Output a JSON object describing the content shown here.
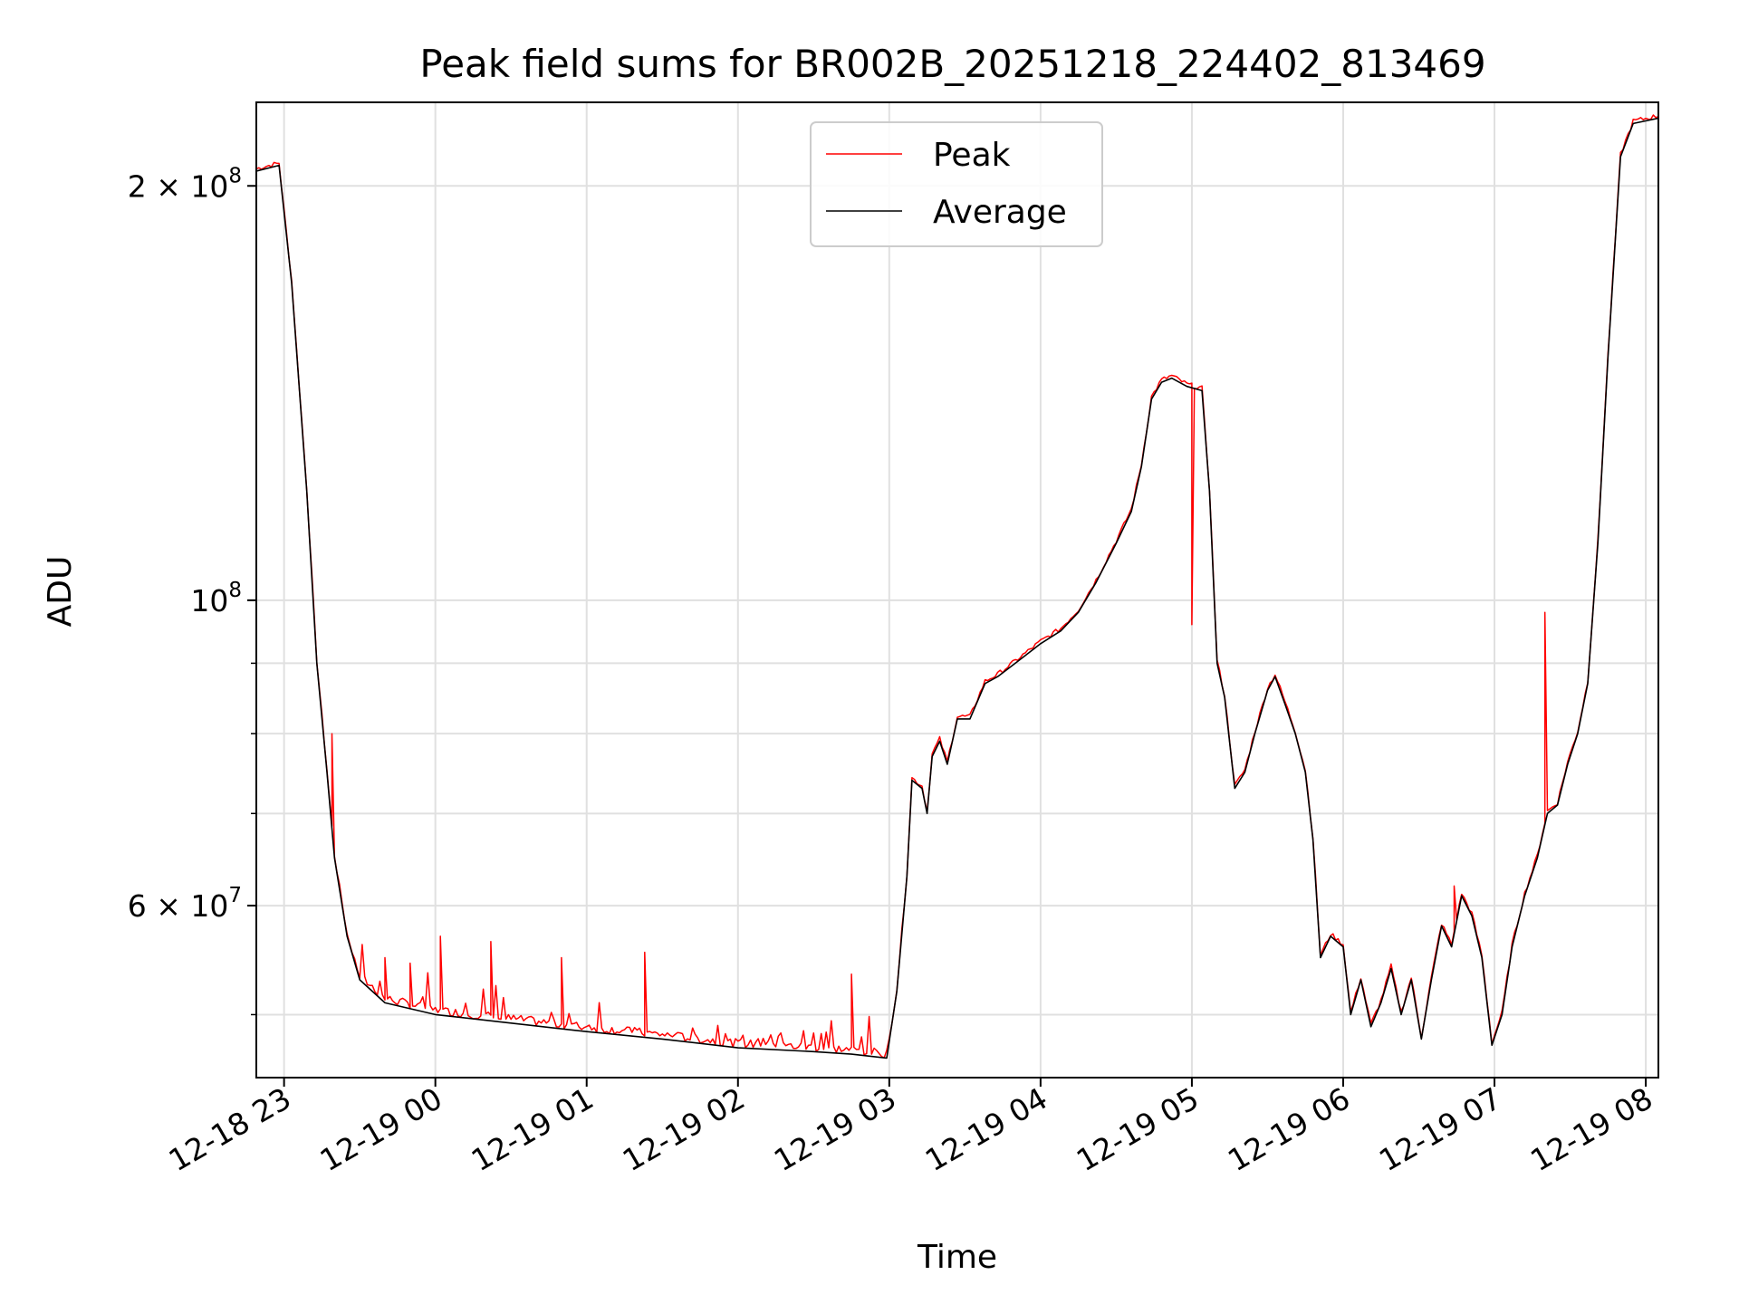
{
  "chart_data": {
    "type": "line",
    "title": "Peak field sums for BR002B_20251218_224402_813469",
    "xlabel": "Time",
    "ylabel": "ADU",
    "yscale": "log",
    "ylim": [
      45000000,
      230000000
    ],
    "xlim": [
      "2025-12-18 22:49",
      "2025-12-19 08:05"
    ],
    "grid": true,
    "legend_position": "upper center",
    "x_ticks": [
      {
        "t": "2025-12-18 23:00",
        "label": "12-18 23"
      },
      {
        "t": "2025-12-19 00:00",
        "label": "12-19 00"
      },
      {
        "t": "2025-12-19 01:00",
        "label": "12-19 01"
      },
      {
        "t": "2025-12-19 02:00",
        "label": "12-19 02"
      },
      {
        "t": "2025-12-19 03:00",
        "label": "12-19 03"
      },
      {
        "t": "2025-12-19 04:00",
        "label": "12-19 04"
      },
      {
        "t": "2025-12-19 05:00",
        "label": "12-19 05"
      },
      {
        "t": "2025-12-19 06:00",
        "label": "12-19 06"
      },
      {
        "t": "2025-12-19 07:00",
        "label": "12-19 07"
      },
      {
        "t": "2025-12-19 08:00",
        "label": "12-19 08"
      }
    ],
    "y_ticks_major": [
      {
        "value": 200000000,
        "base": "2 × 10",
        "exp": "8"
      },
      {
        "value": 100000000,
        "base": "10",
        "exp": "8"
      },
      {
        "value": 60000000,
        "base": "6 × 10",
        "exp": "7"
      }
    ],
    "y_ticks_minor": [
      50000000,
      70000000,
      80000000,
      90000000
    ],
    "series": [
      {
        "name": "Average",
        "color": "#000000",
        "points": [
          [
            "2025-12-18 22:49",
            205000000
          ],
          [
            "2025-12-18 22:58",
            207000000
          ],
          [
            "2025-12-18 23:03",
            170000000
          ],
          [
            "2025-12-18 23:09",
            120000000
          ],
          [
            "2025-12-18 23:13",
            90000000
          ],
          [
            "2025-12-18 23:17",
            75000000
          ],
          [
            "2025-12-18 23:20",
            65000000
          ],
          [
            "2025-12-18 23:25",
            57000000
          ],
          [
            "2025-12-18 23:30",
            53000000
          ],
          [
            "2025-12-18 23:40",
            51000000
          ],
          [
            "2025-12-19 00:00",
            50000000
          ],
          [
            "2025-12-19 00:30",
            49300000
          ],
          [
            "2025-12-19 01:00",
            48600000
          ],
          [
            "2025-12-19 01:30",
            48000000
          ],
          [
            "2025-12-19 02:00",
            47300000
          ],
          [
            "2025-12-19 02:30",
            47000000
          ],
          [
            "2025-12-19 02:45",
            46800000
          ],
          [
            "2025-12-19 02:59",
            46500000
          ],
          [
            "2025-12-19 03:03",
            52000000
          ],
          [
            "2025-12-19 03:07",
            63000000
          ],
          [
            "2025-12-19 03:09",
            74000000
          ],
          [
            "2025-12-19 03:13",
            73000000
          ],
          [
            "2025-12-19 03:15",
            70000000
          ],
          [
            "2025-12-19 03:17",
            77000000
          ],
          [
            "2025-12-19 03:20",
            79000000
          ],
          [
            "2025-12-19 03:23",
            76000000
          ],
          [
            "2025-12-19 03:27",
            82000000
          ],
          [
            "2025-12-19 03:32",
            82000000
          ],
          [
            "2025-12-19 03:38",
            87000000
          ],
          [
            "2025-12-19 03:43",
            88000000
          ],
          [
            "2025-12-19 03:50",
            90000000
          ],
          [
            "2025-12-19 04:00",
            93000000
          ],
          [
            "2025-12-19 04:08",
            95000000
          ],
          [
            "2025-12-19 04:15",
            98000000
          ],
          [
            "2025-12-19 04:22",
            103000000
          ],
          [
            "2025-12-19 04:30",
            110000000
          ],
          [
            "2025-12-19 04:36",
            116000000
          ],
          [
            "2025-12-19 04:40",
            125000000
          ],
          [
            "2025-12-19 04:44",
            140000000
          ],
          [
            "2025-12-19 04:48",
            144000000
          ],
          [
            "2025-12-19 04:52",
            145000000
          ],
          [
            "2025-12-19 04:58",
            143000000
          ],
          [
            "2025-12-19 05:04",
            142000000
          ],
          [
            "2025-12-19 05:07",
            120000000
          ],
          [
            "2025-12-19 05:10",
            90000000
          ],
          [
            "2025-12-19 05:13",
            85000000
          ],
          [
            "2025-12-19 05:17",
            73000000
          ],
          [
            "2025-12-19 05:21",
            75000000
          ],
          [
            "2025-12-19 05:25",
            80000000
          ],
          [
            "2025-12-19 05:30",
            86000000
          ],
          [
            "2025-12-19 05:33",
            88000000
          ],
          [
            "2025-12-19 05:37",
            84000000
          ],
          [
            "2025-12-19 05:41",
            80000000
          ],
          [
            "2025-12-19 05:45",
            75000000
          ],
          [
            "2025-12-19 05:48",
            67000000
          ],
          [
            "2025-12-19 05:51",
            55000000
          ],
          [
            "2025-12-19 05:55",
            57000000
          ],
          [
            "2025-12-19 06:00",
            56000000
          ],
          [
            "2025-12-19 06:03",
            50000000
          ],
          [
            "2025-12-19 06:07",
            53000000
          ],
          [
            "2025-12-19 06:11",
            49000000
          ],
          [
            "2025-12-19 06:15",
            51000000
          ],
          [
            "2025-12-19 06:19",
            54000000
          ],
          [
            "2025-12-19 06:23",
            50000000
          ],
          [
            "2025-12-19 06:27",
            53000000
          ],
          [
            "2025-12-19 06:31",
            48000000
          ],
          [
            "2025-12-19 06:35",
            53000000
          ],
          [
            "2025-12-19 06:39",
            58000000
          ],
          [
            "2025-12-19 06:43",
            56000000
          ],
          [
            "2025-12-19 06:47",
            61000000
          ],
          [
            "2025-12-19 06:51",
            59000000
          ],
          [
            "2025-12-19 06:55",
            55000000
          ],
          [
            "2025-12-19 06:59",
            47500000
          ],
          [
            "2025-12-19 07:03",
            50000000
          ],
          [
            "2025-12-19 07:07",
            56000000
          ],
          [
            "2025-12-19 07:12",
            61000000
          ],
          [
            "2025-12-19 07:17",
            65000000
          ],
          [
            "2025-12-19 07:21",
            70000000
          ],
          [
            "2025-12-19 07:25",
            71000000
          ],
          [
            "2025-12-19 07:29",
            76000000
          ],
          [
            "2025-12-19 07:33",
            80000000
          ],
          [
            "2025-12-19 07:37",
            87000000
          ],
          [
            "2025-12-19 07:41",
            110000000
          ],
          [
            "2025-12-19 07:45",
            150000000
          ],
          [
            "2025-12-19 07:50",
            210000000
          ],
          [
            "2025-12-19 07:55",
            222000000
          ],
          [
            "2025-12-19 08:05",
            224000000
          ]
        ]
      },
      {
        "name": "Peak",
        "color": "#ff0000",
        "note_spikes": [
          [
            "2025-12-18 23:19",
            80000000
          ],
          [
            "2025-12-18 23:40",
            55000000
          ],
          [
            "2025-12-18 23:50",
            54500000
          ],
          [
            "2025-12-19 00:02",
            57000000
          ],
          [
            "2025-12-19 00:22",
            56500000
          ],
          [
            "2025-12-19 00:50",
            55000000
          ],
          [
            "2025-12-19 01:23",
            55500000
          ],
          [
            "2025-12-19 02:45",
            53500000
          ],
          [
            "2025-12-19 07:20",
            98000000
          ],
          [
            "2025-12-19 06:44",
            62000000
          ],
          [
            "2025-12-19 05:00",
            96000000
          ]
        ]
      }
    ]
  }
}
